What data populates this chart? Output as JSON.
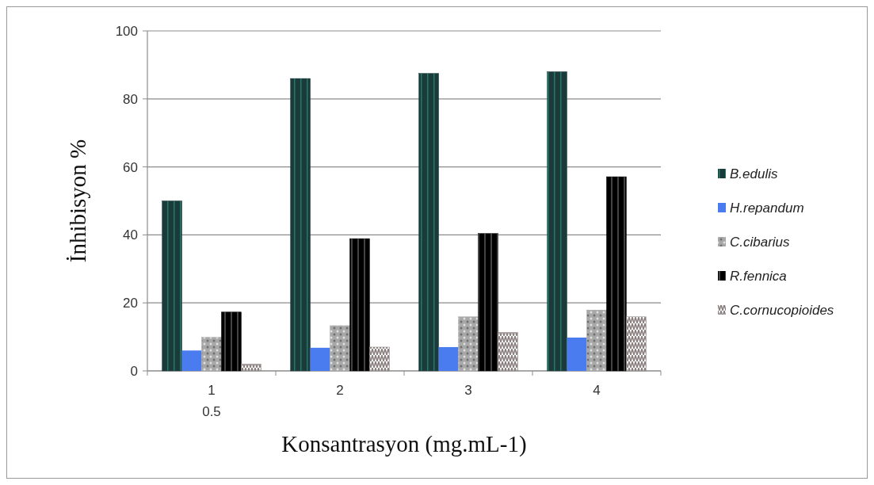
{
  "chart_data": {
    "type": "bar",
    "xlabel": "Konsantrasyon (mg.mL-1)",
    "ylabel": "İnhibisyon %",
    "categories": [
      "1\n0.5",
      "2",
      "3",
      "4"
    ],
    "ylim": [
      0,
      100
    ],
    "yticks": [
      0,
      20,
      40,
      60,
      80,
      100
    ],
    "grid": "y",
    "legend": "right",
    "series": [
      {
        "name": "B.edulis",
        "color": "#1c3a3a",
        "values": [
          50,
          86,
          87.5,
          88
        ]
      },
      {
        "name": "H.repandum",
        "color": "#4a7cf0",
        "values": [
          6,
          6.8,
          7,
          9.8
        ]
      },
      {
        "name": "C.cibarius",
        "color": "#a8a8a8",
        "values": [
          9.9,
          13.3,
          15.9,
          17.9
        ]
      },
      {
        "name": "R.fennica",
        "color": "#000000",
        "values": [
          17.3,
          38.9,
          40.4,
          57.1
        ]
      },
      {
        "name": "C.cornucopioides",
        "color": "#8a8080",
        "values": [
          2,
          7,
          11.3,
          15.9
        ]
      }
    ]
  }
}
